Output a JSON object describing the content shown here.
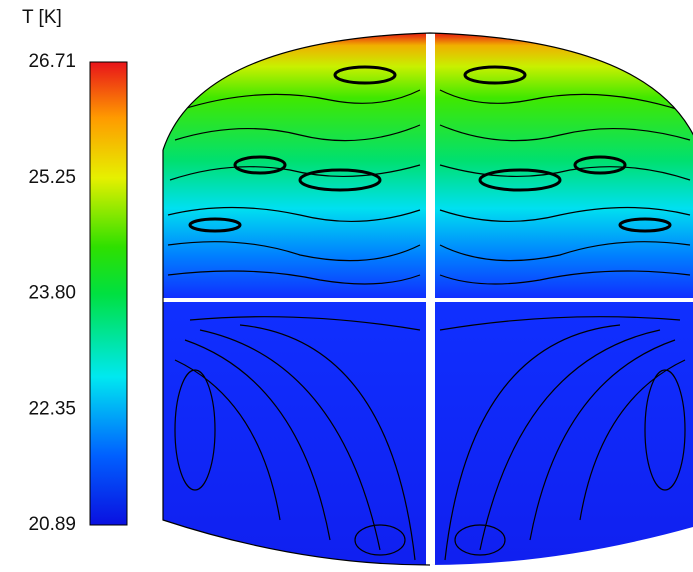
{
  "colorbar": {
    "title": "T [K]",
    "ticks": [
      "26.71",
      "25.25",
      "23.80",
      "22.35",
      "20.89"
    ]
  }
}
